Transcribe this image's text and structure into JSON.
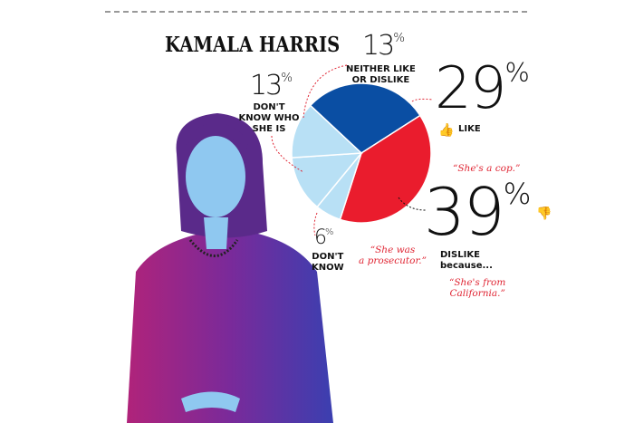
{
  "title": "KAMALA HARRIS",
  "chart_data": {
    "type": "pie",
    "title": "KAMALA HARRIS",
    "slices": [
      {
        "label": "LIKE",
        "value": 29,
        "color": "#0a4ea3"
      },
      {
        "label": "DISLIKE",
        "value": 39,
        "color": "#ea1c2d"
      },
      {
        "label": "DON'T KNOW",
        "value": 6,
        "color": "#b8e0f5"
      },
      {
        "label": "DON'T KNOW WHO SHE IS",
        "value": 13,
        "color": "#b8e0f5"
      },
      {
        "label": "NEITHER LIKE OR DISLIKE",
        "value": 13,
        "color": "#b8e0f5"
      }
    ]
  },
  "labels": {
    "neither_value": "13",
    "neither_label1": "NEITHER LIKE",
    "neither_label2": "OR DISLIKE",
    "dkwho_value": "13",
    "dkwho_label1": "DON'T",
    "dkwho_label2": "KNOW WHO",
    "dkwho_label3": "SHE IS",
    "like_value": "29",
    "like_label": "LIKE",
    "dislike_value": "39",
    "dislike_label1": "DISLIKE",
    "dislike_label2": "because...",
    "dk_value": "6",
    "dk_label1": "DON'T",
    "dk_label2": "KNOW",
    "percent": "%"
  },
  "quotes": [
    "“She's a cop.”",
    "“She was",
    "a prosecutor.”",
    "“She's from",
    "California.”"
  ]
}
